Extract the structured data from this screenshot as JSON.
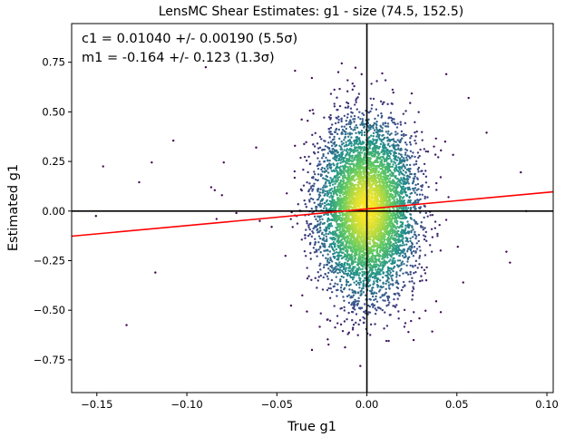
{
  "chart_data": {
    "type": "scatter",
    "title": "LensMC Shear Estimates: g1  - size (74.5, 152.5)",
    "xlabel": "True g1",
    "ylabel": "Estimated g1",
    "xlim": [
      -0.164,
      0.1035
    ],
    "ylim": [
      -0.915,
      0.945
    ],
    "xticks": [
      -0.15,
      -0.1,
      -0.05,
      0.0,
      0.05,
      0.1
    ],
    "xtick_labels": [
      "−0.15",
      "−0.10",
      "−0.05",
      "0.00",
      "0.05",
      "0.10"
    ],
    "yticks": [
      -0.75,
      -0.5,
      -0.25,
      0.0,
      0.25,
      0.5,
      0.75
    ],
    "ytick_labels": [
      "−0.75",
      "−0.50",
      "−0.25",
      "0.00",
      "0.25",
      "0.50",
      "0.75"
    ],
    "grid": false,
    "annotations": [
      "c1 = 0.01040 +/- 0.00190 (5.5σ)",
      "m1 = -0.164 +/- 0.123 (1.3σ)"
    ],
    "reference_lines": {
      "x": 0.0,
      "y": 0.0,
      "color": "#000000"
    },
    "fit_line": {
      "intercept": 0.0104,
      "slope": 0.836,
      "color": "#ff0000"
    },
    "density_colormap": [
      "#440154",
      "#3b528b",
      "#21918c",
      "#5ec962",
      "#fde725"
    ],
    "point_cloud": {
      "x_mean": 0.0,
      "x_sd": 0.0135,
      "y_mean": 0.0104,
      "y_sd": 0.22,
      "count": 6000
    },
    "outliers": [
      {
        "x": -0.1505,
        "y": -0.025
      },
      {
        "x": -0.1465,
        "y": 0.225
      },
      {
        "x": -0.1335,
        "y": -0.575
      },
      {
        "x": -0.1265,
        "y": 0.145
      },
      {
        "x": -0.1195,
        "y": 0.245
      },
      {
        "x": -0.1175,
        "y": -0.31
      },
      {
        "x": -0.1075,
        "y": 0.355
      },
      {
        "x": -0.0895,
        "y": 0.725
      },
      {
        "x": -0.0865,
        "y": 0.12
      },
      {
        "x": -0.0845,
        "y": 0.105
      },
      {
        "x": -0.0805,
        "y": 0.08
      },
      {
        "x": -0.0795,
        "y": 0.245
      },
      {
        "x": -0.0835,
        "y": -0.04
      },
      {
        "x": -0.0725,
        "y": -0.01
      },
      {
        "x": -0.0615,
        "y": 0.32
      },
      {
        "x": -0.0595,
        "y": -0.05
      },
      {
        "x": -0.0305,
        "y": -0.7
      },
      {
        "x": 0.0385,
        "y": -0.455
      },
      {
        "x": 0.0435,
        "y": 0.35
      },
      {
        "x": 0.0505,
        "y": -0.18
      },
      {
        "x": 0.0535,
        "y": -0.36
      },
      {
        "x": 0.0565,
        "y": 0.57
      },
      {
        "x": 0.0665,
        "y": 0.395
      },
      {
        "x": 0.0775,
        "y": -0.205
      },
      {
        "x": 0.0795,
        "y": -0.26
      },
      {
        "x": 0.0855,
        "y": 0.195
      },
      {
        "x": 0.0885,
        "y": 0.0
      }
    ]
  }
}
